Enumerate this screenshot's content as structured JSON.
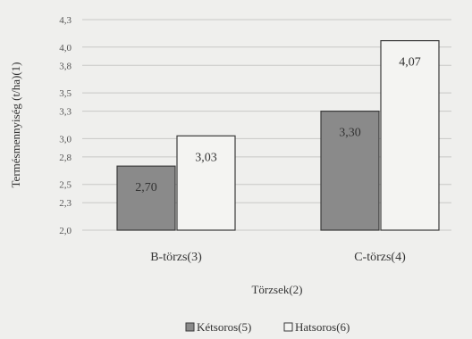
{
  "chart_data": {
    "type": "bar",
    "title": "",
    "xlabel": "Törzsek(2)",
    "ylabel": "Termésmennyiség (t/ha)(1)",
    "categories": [
      "B-törzs(3)",
      "C-törzs(4)"
    ],
    "series": [
      {
        "name": "Kétsoros(5)",
        "values": [
          2.7,
          3.3
        ],
        "labels": [
          "2,70",
          "3,30"
        ],
        "color": "#8a8a8a"
      },
      {
        "name": "Hatsoros(6)",
        "values": [
          3.03,
          4.07
        ],
        "labels": [
          "3,03",
          "4,07"
        ],
        "color": "#f4f4f2"
      }
    ],
    "ylim": [
      2.0,
      4.3
    ],
    "yticks": [
      2.0,
      2.3,
      2.5,
      2.8,
      3.0,
      3.3,
      3.5,
      3.8,
      4.0,
      4.3
    ],
    "ytick_labels": [
      "2,0",
      "2,3",
      "2,5",
      "2,8",
      "3,0",
      "3,3",
      "3,5",
      "3,8",
      "4,0",
      "4,3"
    ],
    "grid": true,
    "legend": "bottom"
  }
}
